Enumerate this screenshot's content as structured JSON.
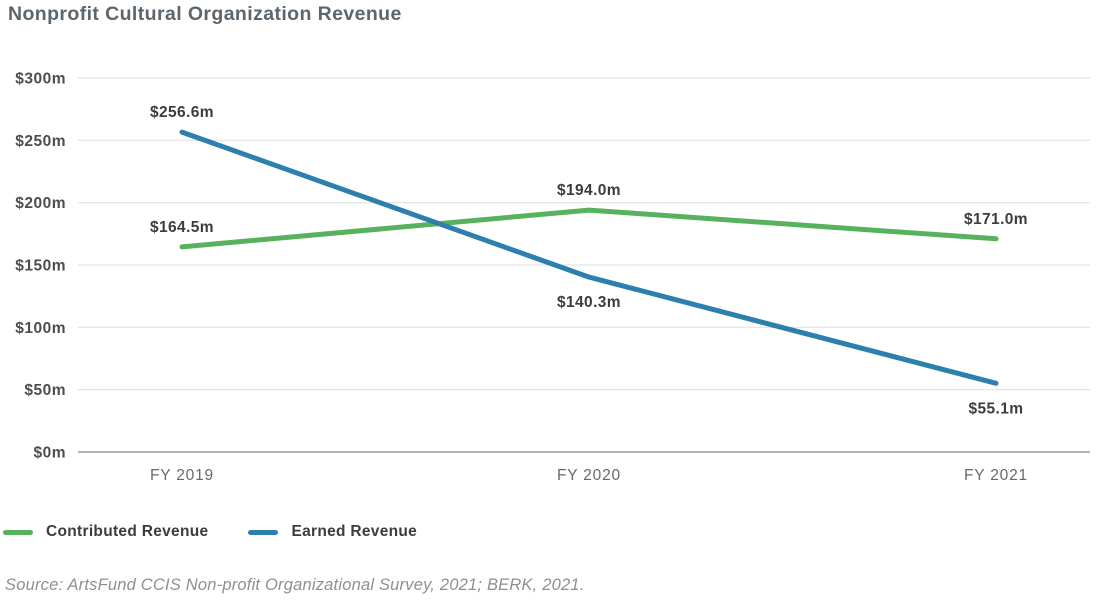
{
  "chart_data": {
    "type": "line",
    "title": "Nonprofit Cultural Organization Revenue",
    "categories": [
      "FY 2019",
      "FY 2020",
      "FY 2021"
    ],
    "series": [
      {
        "name": "Contributed Revenue",
        "color": "#57b25e",
        "values": [
          164.5,
          194.0,
          171.0
        ],
        "labels": [
          "$164.5m",
          "$194.0m",
          "$171.0m"
        ],
        "label_side": [
          "above",
          "above",
          "above"
        ]
      },
      {
        "name": "Earned Revenue",
        "color": "#2d7fad",
        "values": [
          256.6,
          140.3,
          55.1
        ],
        "labels": [
          "$256.6m",
          "$140.3m",
          "$55.1m"
        ],
        "label_side": [
          "above",
          "below",
          "below"
        ]
      }
    ],
    "xlabel": "",
    "ylabel": "",
    "ylim": [
      0,
      300
    ],
    "yticks": [
      0,
      50,
      100,
      150,
      200,
      250,
      300
    ],
    "ytick_labels": [
      "$0m",
      "$50m",
      "$100m",
      "$150m",
      "$200m",
      "$250m",
      "$300m"
    ],
    "grid": true,
    "legend_position": "bottom-left"
  },
  "styles": {
    "grid_color": "#e2e3e4",
    "axis_color": "#b1b3b5",
    "ytick_label_color": "#4b4e51",
    "category_label_color": "#66696c",
    "point_label_color": "#3a3c3f"
  },
  "source_caption": "Source: ArtsFund CCIS Non-profit Organizational Survey, 2021; BERK, 2021."
}
